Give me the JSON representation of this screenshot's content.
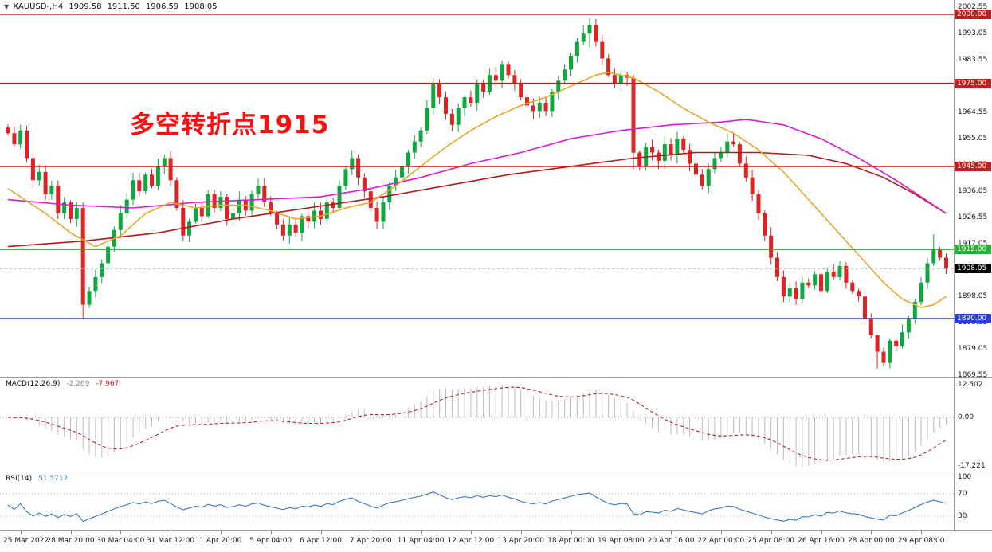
{
  "header": {
    "symbol": "XAUUSD-,H4",
    "open": "1909.58",
    "high": "1911.50",
    "low": "1906.59",
    "close": "1908.05"
  },
  "icons": {
    "chart_menu": "▼"
  },
  "annotation": {
    "text": "多空转折点1915",
    "color": "#ff0d0d"
  },
  "chart_data": {
    "type": "candlestick",
    "title": "XAUUSD-,H4",
    "symbol": "XAUUSD-",
    "timeframe": "H4",
    "price_top": 2002.55,
    "price_bottom": 1869.55,
    "y_ticks": [
      "2002.55",
      "1993.05",
      "1983.55",
      "1974.05",
      "1964.55",
      "1955.05",
      "1945.55",
      "1936.05",
      "1926.55",
      "1917.05",
      "1907.55",
      "1898.05",
      "1888.55",
      "1879.05",
      "1869.55"
    ],
    "x_labels": [
      "25 Mar 2022",
      "28 Mar 20:00",
      "30 Mar 04:00",
      "31 Mar 12:00",
      "1 Apr 20:00",
      "5 Apr 04:00",
      "6 Apr 12:00",
      "7 Apr 20:00",
      "11 Apr 04:00",
      "12 Apr 12:00",
      "13 Apr 20:00",
      "18 Apr 00:00",
      "19 Apr 08:00",
      "20 Apr 16:00",
      "22 Apr 00:00",
      "25 Apr 08:00",
      "26 Apr 16:00",
      "28 Apr 00:00",
      "29 Apr 08:00"
    ],
    "x_label_first_index": 2,
    "x_label_step": 8,
    "first_open": 1959,
    "closes": [
      1957,
      1953,
      1958,
      1948,
      1940,
      1943,
      1935,
      1938,
      1928,
      1932,
      1926,
      1930,
      1895,
      1900,
      1905,
      1910,
      1916,
      1922,
      1928,
      1933,
      1940,
      1936,
      1942,
      1938,
      1945,
      1948,
      1940,
      1930,
      1920,
      1925,
      1930,
      1927,
      1935,
      1930,
      1934,
      1926,
      1928,
      1933,
      1929,
      1935,
      1938,
      1932,
      1928,
      1924,
      1920,
      1924,
      1921,
      1927,
      1925,
      1929,
      1926,
      1932,
      1930,
      1938,
      1944,
      1948,
      1941,
      1936,
      1930,
      1925,
      1932,
      1938,
      1941,
      1945,
      1950,
      1954,
      1958,
      1966,
      1975,
      1970,
      1964,
      1960,
      1966,
      1970,
      1968,
      1975,
      1972,
      1978,
      1976,
      1982,
      1978,
      1975,
      1970,
      1967,
      1965,
      1968,
      1965,
      1972,
      1976,
      1980,
      1985,
      1990,
      1993,
      1996,
      1990,
      1984,
      1978,
      1975,
      1978,
      1977,
      1950,
      1945,
      1952,
      1950,
      1947,
      1953,
      1949,
      1955,
      1951,
      1946,
      1942,
      1938,
      1944,
      1948,
      1950,
      1954,
      1953,
      1946,
      1941,
      1935,
      1928,
      1920,
      1912,
      1905,
      1898,
      1901,
      1897,
      1903,
      1902,
      1906,
      1900,
      1907,
      1905,
      1909,
      1903,
      1900,
      1898,
      1890,
      1884,
      1878,
      1874,
      1882,
      1880,
      1885,
      1890,
      1896,
      1903,
      1910,
      1915,
      1912,
      1908.05
    ],
    "wick_overrides": {
      "12": [
        1932,
        1890
      ],
      "93": [
        1998.5,
        1988
      ],
      "100": [
        1978,
        1944
      ],
      "139": [
        1880,
        1872
      ],
      "148": [
        1920.5,
        1909
      ]
    },
    "up_color": "#0fa840",
    "down_color": "#e02222",
    "hlines": [
      {
        "price": 2000.0,
        "color": "#c01f1f",
        "tag": "2000.00"
      },
      {
        "price": 1975.0,
        "color": "#c01f1f",
        "tag": "1975.00"
      },
      {
        "price": 1945.0,
        "color": "#c01f1f",
        "tag": "1945.00"
      },
      {
        "price": 1915.0,
        "color": "#23b33a",
        "tag": "1915.00"
      },
      {
        "price": 1890.0,
        "color": "#2b3fd6",
        "tag": "1890.00"
      }
    ],
    "current_price": {
      "value": 1908.05,
      "tag": "1908.05",
      "tag_bg": "#000000",
      "line_color": "#b0b0b0"
    },
    "moving_averages": [
      {
        "name": "ma-slow",
        "color": "#b01a1a",
        "points": [
          [
            0,
            1916
          ],
          [
            12,
            1918
          ],
          [
            24,
            1921
          ],
          [
            36,
            1926
          ],
          [
            48,
            1930
          ],
          [
            60,
            1934
          ],
          [
            70,
            1938
          ],
          [
            80,
            1942
          ],
          [
            90,
            1945
          ],
          [
            100,
            1948
          ],
          [
            110,
            1950
          ],
          [
            120,
            1950
          ],
          [
            128,
            1949
          ],
          [
            134,
            1946
          ],
          [
            140,
            1941
          ],
          [
            145,
            1935
          ],
          [
            150,
            1928
          ]
        ]
      },
      {
        "name": "ma-medium",
        "color": "#d81bd8",
        "points": [
          [
            0,
            1933
          ],
          [
            10,
            1931
          ],
          [
            20,
            1930
          ],
          [
            30,
            1932
          ],
          [
            40,
            1933
          ],
          [
            50,
            1934
          ],
          [
            58,
            1937
          ],
          [
            66,
            1941
          ],
          [
            74,
            1946
          ],
          [
            82,
            1950
          ],
          [
            90,
            1955
          ],
          [
            98,
            1958
          ],
          [
            106,
            1960
          ],
          [
            114,
            1961
          ],
          [
            118,
            1962
          ],
          [
            124,
            1960
          ],
          [
            130,
            1955
          ],
          [
            136,
            1948
          ],
          [
            142,
            1940
          ],
          [
            146,
            1934
          ],
          [
            150,
            1928
          ]
        ]
      },
      {
        "name": "ma-fast",
        "color": "#e8a62a",
        "points": [
          [
            0,
            1937
          ],
          [
            6,
            1928
          ],
          [
            10,
            1921
          ],
          [
            14,
            1916
          ],
          [
            18,
            1920
          ],
          [
            22,
            1928
          ],
          [
            26,
            1932
          ],
          [
            30,
            1930
          ],
          [
            34,
            1931
          ],
          [
            38,
            1931
          ],
          [
            42,
            1929
          ],
          [
            46,
            1926
          ],
          [
            50,
            1927
          ],
          [
            54,
            1930
          ],
          [
            58,
            1932
          ],
          [
            62,
            1938
          ],
          [
            66,
            1945
          ],
          [
            70,
            1952
          ],
          [
            74,
            1958
          ],
          [
            78,
            1963
          ],
          [
            82,
            1967
          ],
          [
            86,
            1970
          ],
          [
            90,
            1974
          ],
          [
            94,
            1978
          ],
          [
            96,
            1979
          ],
          [
            100,
            1977
          ],
          [
            104,
            1972
          ],
          [
            108,
            1966
          ],
          [
            112,
            1961
          ],
          [
            116,
            1957
          ],
          [
            120,
            1951
          ],
          [
            124,
            1943
          ],
          [
            128,
            1933
          ],
          [
            132,
            1923
          ],
          [
            136,
            1913
          ],
          [
            140,
            1903
          ],
          [
            143,
            1897
          ],
          [
            146,
            1894
          ],
          [
            148,
            1895
          ],
          [
            150,
            1898
          ]
        ]
      }
    ],
    "indicators": {
      "macd": {
        "label": "MACD(12,26,9)",
        "value_main": "-2.269",
        "value_signal": "-7.967",
        "fast": 12,
        "slow": 26,
        "signal": 9,
        "y_ticks": [
          "12.502",
          "0.00",
          "-17.221"
        ],
        "histogram_color": "#bdbdbd",
        "signal_color": "#c01f1f"
      },
      "rsi": {
        "label": "RSI(14)",
        "value": "51.5712",
        "period": 14,
        "y_ticks": [
          "100",
          "70",
          "30"
        ],
        "levels": [
          70,
          30
        ],
        "line_color": "#3b7bbf"
      }
    }
  }
}
